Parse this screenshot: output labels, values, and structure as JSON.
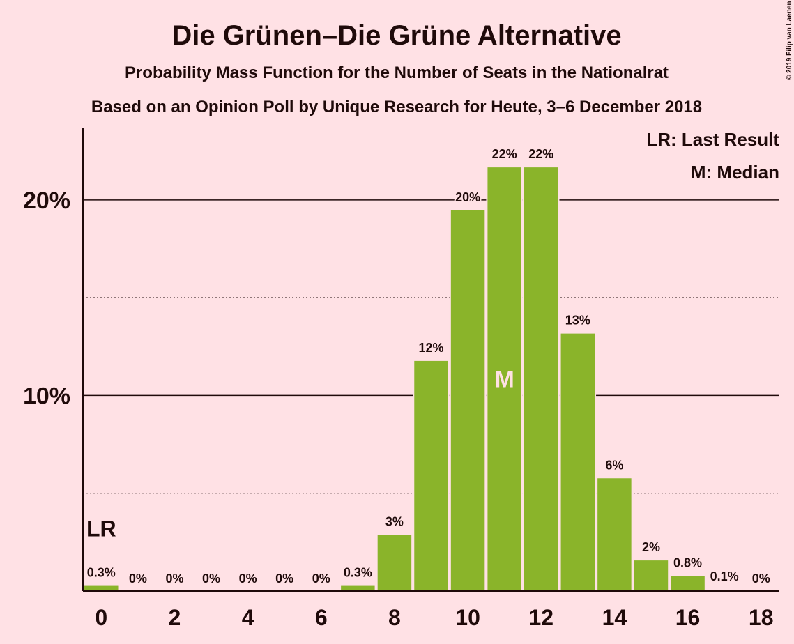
{
  "chart_data": {
    "type": "bar",
    "title": "Die Grünen–Die Grüne Alternative",
    "subtitles": [
      "Probability Mass Function for the Number of Seats in the Nationalrat",
      "Based on an Opinion Poll by Unique Research for Heute, 3–6 December 2018"
    ],
    "x": [
      0,
      1,
      2,
      3,
      4,
      5,
      6,
      7,
      8,
      9,
      10,
      11,
      12,
      13,
      14,
      15,
      16,
      17,
      18
    ],
    "values": [
      0.3,
      0,
      0,
      0,
      0,
      0,
      0,
      0.3,
      2.9,
      11.8,
      19.5,
      21.7,
      21.7,
      13.2,
      5.8,
      1.6,
      0.8,
      0.1,
      0
    ],
    "value_labels": [
      "0.3%",
      "0%",
      "0%",
      "0%",
      "0%",
      "0%",
      "0%",
      "0.3%",
      "3%",
      "12%",
      "20%",
      "22%",
      "22%",
      "13%",
      "6%",
      "2%",
      "0.8%",
      "0.1%",
      "0%"
    ],
    "color": "#8ab42a",
    "xlim": [
      -0.5,
      18.5
    ],
    "xticks": [
      0,
      2,
      4,
      6,
      8,
      10,
      12,
      14,
      16,
      18
    ],
    "ylim": [
      0,
      23.7
    ],
    "yticks": [
      {
        "value": 10,
        "label": "10%"
      },
      {
        "value": 20,
        "label": "20%"
      }
    ],
    "minor_yticks": [
      5,
      15
    ],
    "last_result": {
      "x": 0,
      "label": "LR"
    },
    "median": {
      "x": 11,
      "label": "M"
    },
    "legend": [
      "LR: Last Result",
      "M: Median"
    ],
    "legend_position": "upper right",
    "copyright": "© 2019 Filip van Laenen"
  }
}
